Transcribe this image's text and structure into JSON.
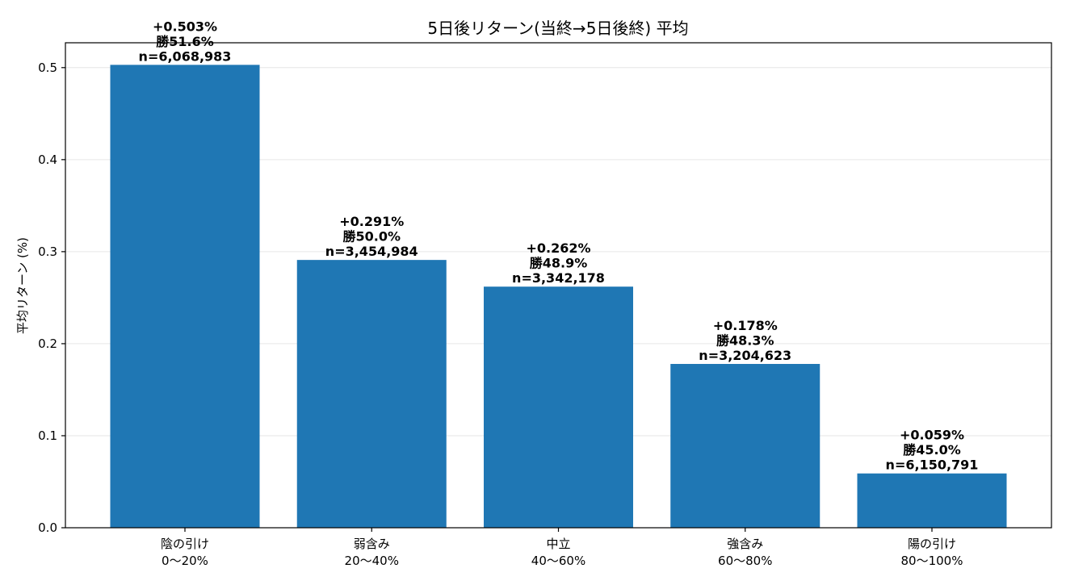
{
  "chart_data": {
    "type": "bar",
    "title": "5日後リターン(当終→5日後終) 平均",
    "xlabel": "",
    "ylabel": "平均リターン (%)",
    "ylim": [
      0,
      0.527
    ],
    "yticks": [
      0.0,
      0.1,
      0.2,
      0.3,
      0.4,
      0.5
    ],
    "ytick_labels": [
      "0.0",
      "0.1",
      "0.2",
      "0.3",
      "0.4",
      "0.5"
    ],
    "grid": "horizontal",
    "bar_color": "#1f77b4",
    "categories": [
      [
        "陰の引け",
        "0〜20%"
      ],
      [
        "弱含み",
        "20〜40%"
      ],
      [
        "中立",
        "40〜60%"
      ],
      [
        "強含み",
        "60〜80%"
      ],
      [
        "陽の引け",
        "80〜100%"
      ]
    ],
    "values": [
      0.503,
      0.291,
      0.262,
      0.178,
      0.059
    ],
    "bar_labels": [
      [
        "+0.503%",
        "勝51.6%",
        "n=6,068,983"
      ],
      [
        "+0.291%",
        "勝50.0%",
        "n=3,454,984"
      ],
      [
        "+0.262%",
        "勝48.9%",
        "n=3,342,178"
      ],
      [
        "+0.178%",
        "勝48.3%",
        "n=3,204,623"
      ],
      [
        "+0.059%",
        "勝45.0%",
        "n=6,150,791"
      ]
    ]
  }
}
